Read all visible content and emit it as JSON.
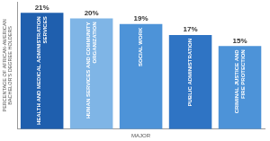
{
  "chart_data": {
    "type": "bar",
    "xlabel": "MAJOR",
    "ylabel": "PERCENTAGE OF AFRICAN-AMERICAN BACHELOR'S DEGREE HOLDERS",
    "categories": [
      "HEALTH AND MEDICAL ADMINISTRATION SERVICES",
      "HUMAN SERVICES AND COMMUNITY ORGANIZATION",
      "SOCIAL WORK",
      "PUBLIC ADMINISTRATION",
      "CRIMINAL JUSTICE AND FIRE PROTECTION"
    ],
    "values": [
      21,
      20,
      19,
      17,
      15
    ],
    "value_labels": [
      "21%",
      "20%",
      "19%",
      "17%",
      "15%"
    ],
    "colors": [
      "#1f5fae",
      "#7fb5e6",
      "#4d93d8",
      "#2f74c4",
      "#4d93d8"
    ],
    "ylim": [
      0,
      23
    ],
    "grid": false,
    "data_labels": true,
    "tick_labels": false
  }
}
